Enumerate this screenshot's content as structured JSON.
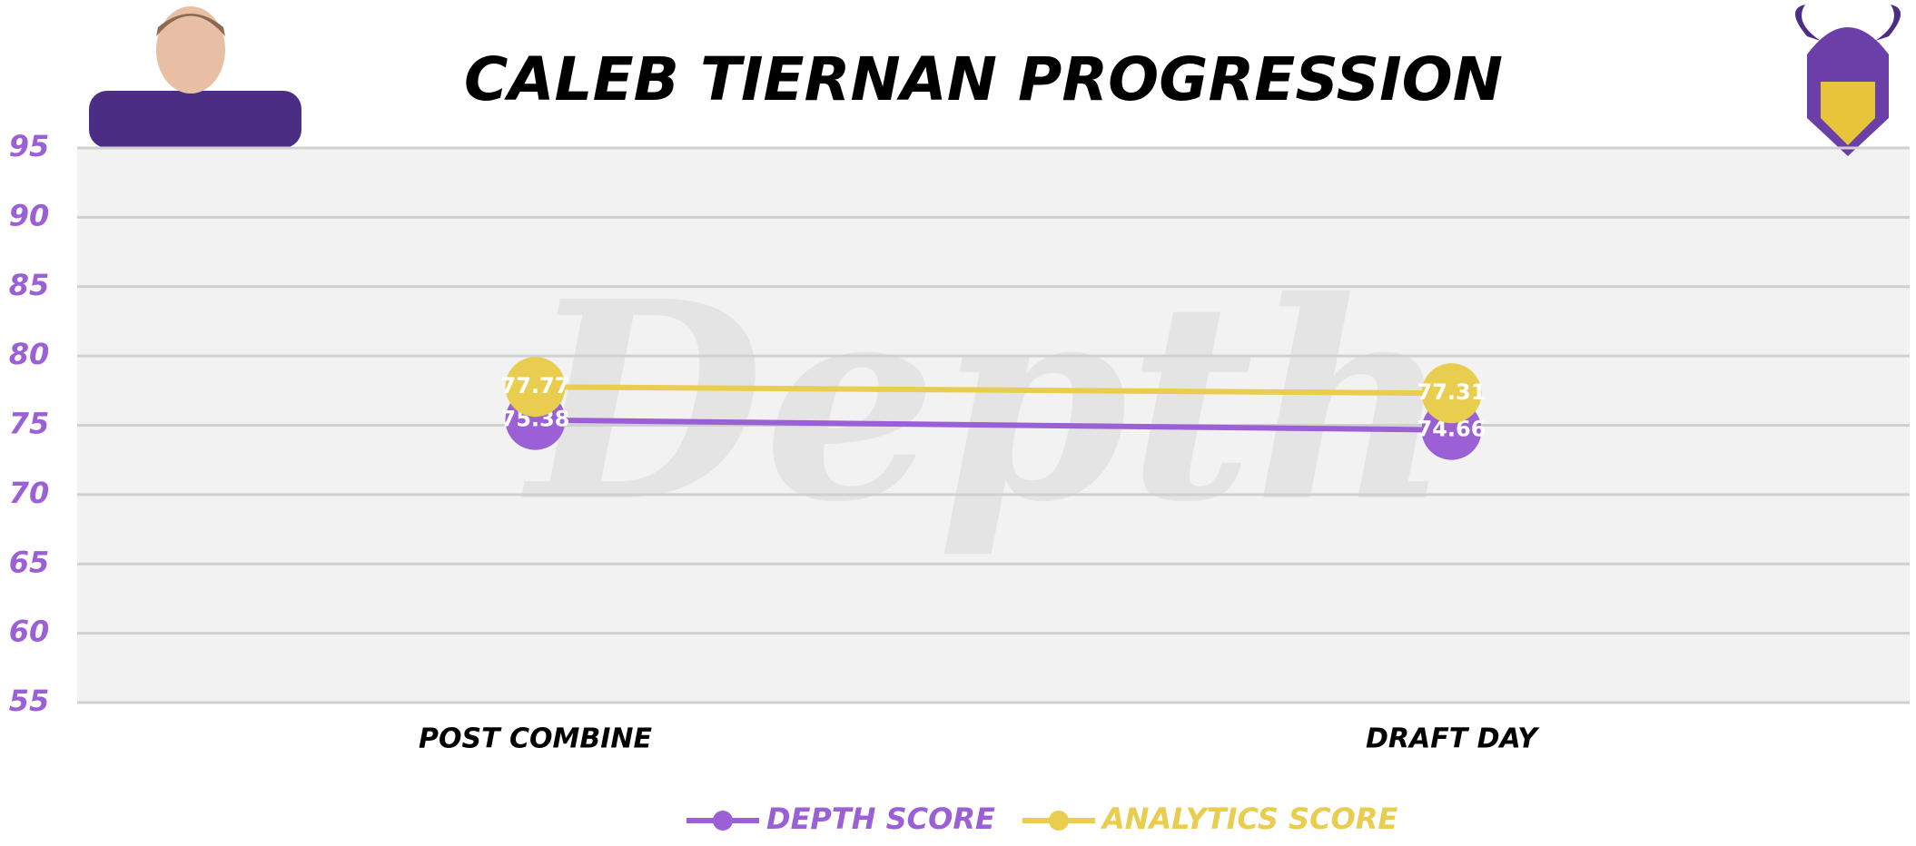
{
  "chart_data": {
    "type": "line",
    "title": "CALEB TIERNAN PROGRESSION",
    "watermark": "Depth",
    "categories": [
      "POST COMBINE",
      "DRAFT DAY"
    ],
    "series": [
      {
        "name": "DEPTH SCORE",
        "color": "#9b5fd6",
        "values": [
          75.38,
          74.66
        ]
      },
      {
        "name": "ANALYTICS SCORE",
        "color": "#e8cd4f",
        "values": [
          77.77,
          77.31
        ]
      }
    ],
    "ylim": [
      55,
      95
    ],
    "yticks": [
      55,
      60,
      65,
      70,
      75,
      80,
      85,
      90,
      95
    ],
    "grid": true,
    "legend": "bottom"
  }
}
